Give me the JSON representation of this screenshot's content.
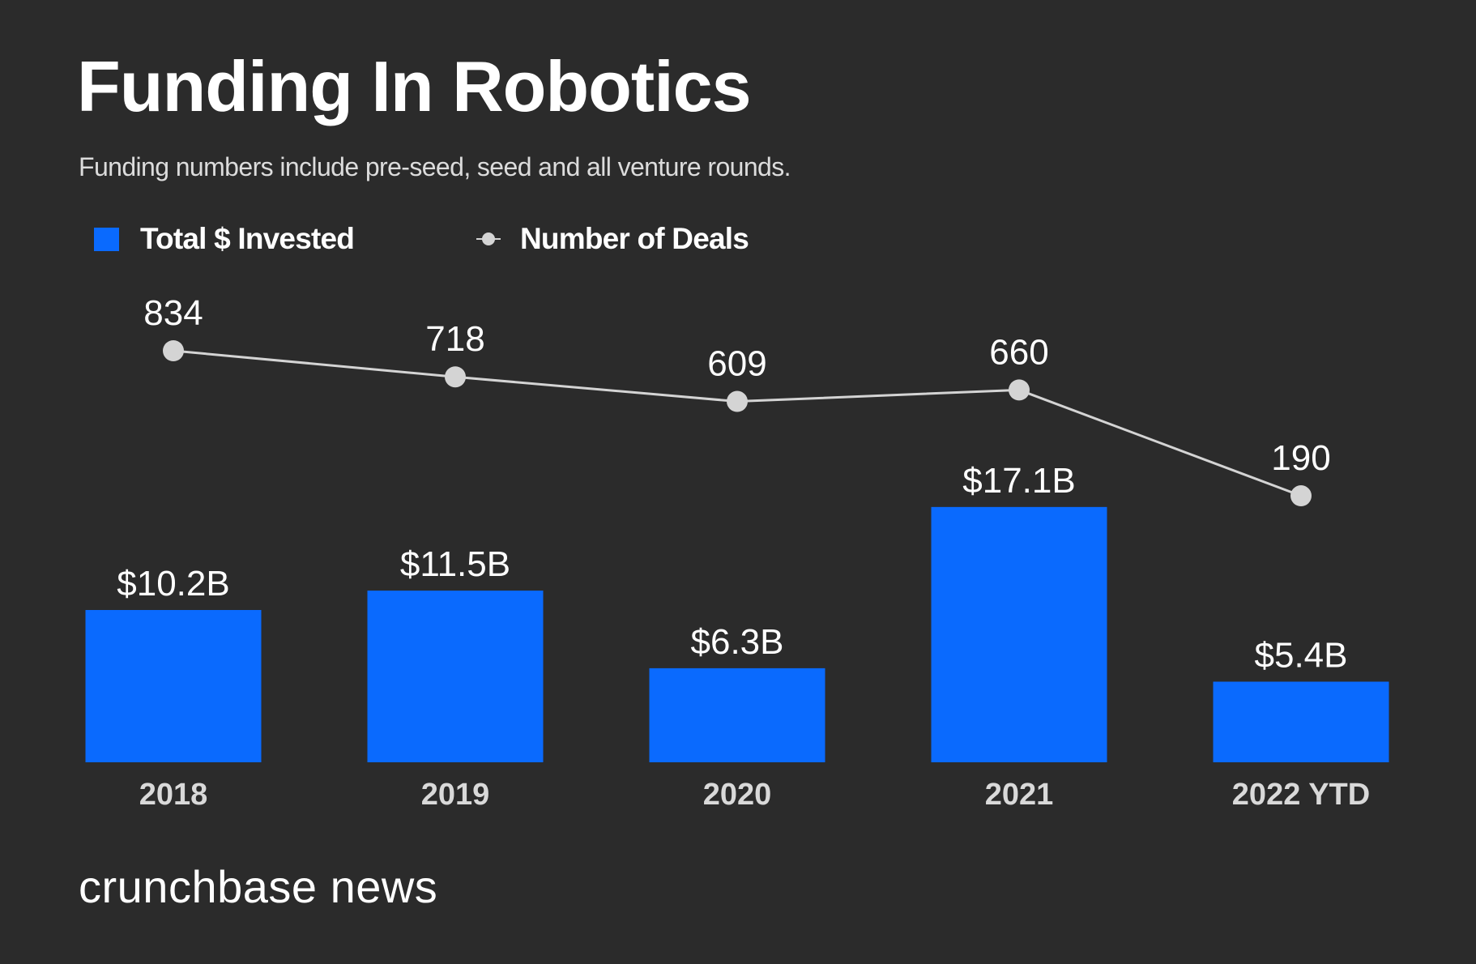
{
  "header": {
    "title": "Funding In Robotics",
    "subtitle": "Funding numbers include pre-seed, seed and all venture rounds."
  },
  "legend": [
    {
      "label": "Total $ Invested",
      "marker": "square",
      "color": "#0a6afe"
    },
    {
      "label": "Number of Deals",
      "marker": "line-dot",
      "color": "#d4d4d4"
    }
  ],
  "footer": {
    "brand": "crunchbase news"
  },
  "colors": {
    "background": "#2b2b2b",
    "bar": "#0a6afe",
    "line": "#d4d4d4",
    "text": "#ffffff",
    "axis_text": "#d9d9d9"
  },
  "chart_data": {
    "type": "bar",
    "title": "Funding In Robotics",
    "subtitle": "Funding numbers include pre-seed, seed and all venture rounds.",
    "xlabel": "",
    "ylabel": "",
    "grid": false,
    "legend_position": "top-left",
    "categories": [
      "2018",
      "2019",
      "2020",
      "2021",
      "2022 YTD"
    ],
    "series": [
      {
        "name": "Total $ Invested",
        "type": "bar",
        "unit": "USD billions",
        "values": [
          10.2,
          11.5,
          6.3,
          17.1,
          5.4
        ],
        "labels": [
          "$10.2B",
          "$11.5B",
          "$6.3B",
          "$17.1B",
          "$5.4B"
        ]
      },
      {
        "name": "Number of Deals",
        "type": "line",
        "values": [
          834,
          718,
          609,
          660,
          190
        ],
        "labels": [
          "834",
          "718",
          "609",
          "660",
          "190"
        ]
      }
    ]
  }
}
